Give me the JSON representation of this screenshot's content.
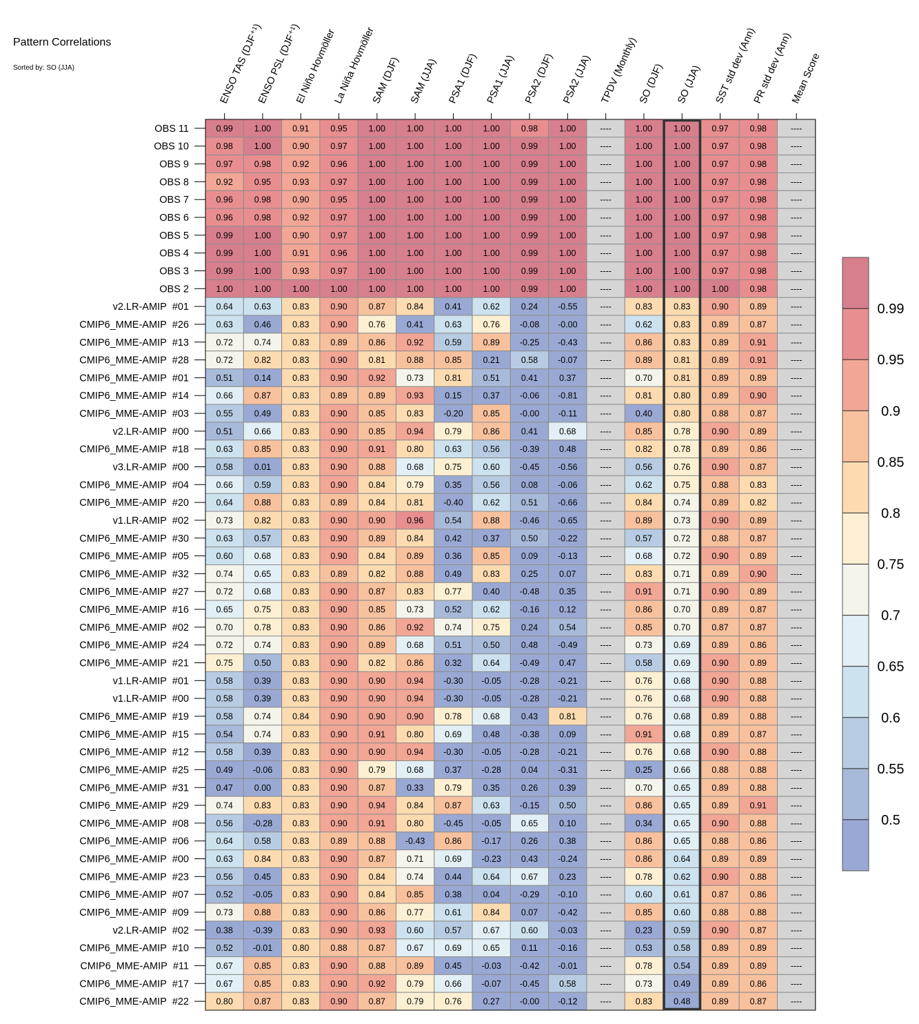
{
  "chart_data": {
    "type": "heatmap",
    "title": "Pattern Correlations",
    "subtitle": "Sorted by: SO (JJA)",
    "sorted_column": "SO (JJA)",
    "missing_text": "----",
    "columns": [
      "ENSO TAS (DJF⁺¹)",
      "ENSO PSL (DJF⁺¹)",
      "El Niño Hovmöller",
      "La Niña Hovmöller",
      "SAM (DJF)",
      "SAM (JJA)",
      "PSA1 (DJF)",
      "PSA1 (JJA)",
      "PSA2 (DJF)",
      "PSA2 (JJA)",
      "TPDV (Monthly)",
      "SO (DJF)",
      "SO (JJA)",
      "SST std dev (Ann)",
      "PR std dev (Ann)",
      "Mean Score"
    ],
    "rows": [
      {
        "label": "OBS 11",
        "values": [
          "0.99",
          "1.00",
          "0.91",
          "0.95",
          "1.00",
          "1.00",
          "1.00",
          "1.00",
          "0.98",
          "1.00",
          null,
          "1.00",
          "1.00",
          "0.97",
          "0.98",
          null
        ]
      },
      {
        "label": "OBS 10",
        "values": [
          "0.98",
          "1.00",
          "0.90",
          "0.97",
          "1.00",
          "1.00",
          "1.00",
          "1.00",
          "0.99",
          "1.00",
          null,
          "1.00",
          "1.00",
          "0.97",
          "0.98",
          null
        ]
      },
      {
        "label": "OBS 9",
        "values": [
          "0.97",
          "0.98",
          "0.92",
          "0.96",
          "1.00",
          "1.00",
          "1.00",
          "1.00",
          "0.99",
          "1.00",
          null,
          "1.00",
          "1.00",
          "0.97",
          "0.98",
          null
        ]
      },
      {
        "label": "OBS 8",
        "values": [
          "0.92",
          "0.95",
          "0.93",
          "0.97",
          "1.00",
          "1.00",
          "1.00",
          "1.00",
          "0.99",
          "1.00",
          null,
          "1.00",
          "1.00",
          "0.97",
          "0.98",
          null
        ]
      },
      {
        "label": "OBS 7",
        "values": [
          "0.96",
          "0.98",
          "0.90",
          "0.95",
          "1.00",
          "1.00",
          "1.00",
          "1.00",
          "0.99",
          "1.00",
          null,
          "1.00",
          "1.00",
          "0.97",
          "0.98",
          null
        ]
      },
      {
        "label": "OBS 6",
        "values": [
          "0.96",
          "0.98",
          "0.92",
          "0.97",
          "1.00",
          "1.00",
          "1.00",
          "1.00",
          "0.99",
          "1.00",
          null,
          "1.00",
          "1.00",
          "0.97",
          "0.98",
          null
        ]
      },
      {
        "label": "OBS 5",
        "values": [
          "0.99",
          "1.00",
          "0.90",
          "0.97",
          "1.00",
          "1.00",
          "1.00",
          "1.00",
          "0.99",
          "1.00",
          null,
          "1.00",
          "1.00",
          "0.97",
          "0.98",
          null
        ]
      },
      {
        "label": "OBS 4",
        "values": [
          "0.99",
          "1.00",
          "0.91",
          "0.96",
          "1.00",
          "1.00",
          "1.00",
          "1.00",
          "0.99",
          "1.00",
          null,
          "1.00",
          "1.00",
          "0.97",
          "0.98",
          null
        ]
      },
      {
        "label": "OBS 3",
        "values": [
          "0.99",
          "1.00",
          "0.93",
          "0.97",
          "1.00",
          "1.00",
          "1.00",
          "1.00",
          "0.99",
          "1.00",
          null,
          "1.00",
          "1.00",
          "0.97",
          "0.98",
          null
        ]
      },
      {
        "label": "OBS 2",
        "values": [
          "1.00",
          "1.00",
          "1.00",
          "1.00",
          "1.00",
          "1.00",
          "1.00",
          "1.00",
          "0.99",
          "1.00",
          null,
          "1.00",
          "1.00",
          "1.00",
          "0.98",
          null
        ]
      },
      {
        "label": "v2.LR-AMIP  #01",
        "values": [
          "0.64",
          "0.63",
          "0.83",
          "0.90",
          "0.87",
          "0.84",
          "0.41",
          "0.62",
          "0.24",
          "-0.55",
          null,
          "0.83",
          "0.83",
          "0.90",
          "0.89",
          null
        ]
      },
      {
        "label": "CMIP6_MME-AMIP  #26",
        "values": [
          "0.63",
          "0.46",
          "0.83",
          "0.90",
          "0.76",
          "0.41",
          "0.63",
          "0.76",
          "-0.08",
          "-0.00",
          null,
          "0.62",
          "0.83",
          "0.89",
          "0.87",
          null
        ]
      },
      {
        "label": "CMIP6_MME-AMIP  #13",
        "values": [
          "0.72",
          "0.74",
          "0.83",
          "0.89",
          "0.86",
          "0.92",
          "0.59",
          "0.89",
          "-0.25",
          "-0.43",
          null,
          "0.86",
          "0.83",
          "0.89",
          "0.91",
          null
        ]
      },
      {
        "label": "CMIP6_MME-AMIP  #28",
        "values": [
          "0.72",
          "0.82",
          "0.83",
          "0.90",
          "0.81",
          "0.88",
          "0.85",
          "0.21",
          "0.58",
          "-0.07",
          null,
          "0.89",
          "0.81",
          "0.89",
          "0.91",
          null
        ]
      },
      {
        "label": "CMIP6_MME-AMIP  #01",
        "values": [
          "0.51",
          "0.14",
          "0.83",
          "0.90",
          "0.92",
          "0.73",
          "0.81",
          "0.51",
          "0.41",
          "0.37",
          null,
          "0.70",
          "0.81",
          "0.89",
          "0.89",
          null
        ]
      },
      {
        "label": "CMIP6_MME-AMIP  #14",
        "values": [
          "0.66",
          "0.87",
          "0.83",
          "0.89",
          "0.89",
          "0.93",
          "0.15",
          "0.37",
          "-0.06",
          "-0.81",
          null,
          "0.81",
          "0.80",
          "0.89",
          "0.90",
          null
        ]
      },
      {
        "label": "CMIP6_MME-AMIP  #03",
        "values": [
          "0.55",
          "0.49",
          "0.83",
          "0.90",
          "0.85",
          "0.83",
          "-0.20",
          "0.85",
          "-0.00",
          "-0.11",
          null,
          "0.40",
          "0.80",
          "0.88",
          "0.87",
          null
        ]
      },
      {
        "label": "v2.LR-AMIP  #00",
        "values": [
          "0.51",
          "0.66",
          "0.83",
          "0.90",
          "0.85",
          "0.94",
          "0.79",
          "0.86",
          "0.41",
          "0.68",
          null,
          "0.85",
          "0.78",
          "0.90",
          "0.89",
          null
        ]
      },
      {
        "label": "CMIP6_MME-AMIP  #18",
        "values": [
          "0.63",
          "0.85",
          "0.83",
          "0.90",
          "0.91",
          "0.80",
          "0.63",
          "0.56",
          "-0.39",
          "0.48",
          null,
          "0.82",
          "0.78",
          "0.89",
          "0.86",
          null
        ]
      },
      {
        "label": "v3.LR-AMIP  #00",
        "values": [
          "0.58",
          "0.01",
          "0.83",
          "0.90",
          "0.88",
          "0.68",
          "0.75",
          "0.60",
          "-0.45",
          "-0.56",
          null,
          "0.56",
          "0.76",
          "0.90",
          "0.87",
          null
        ]
      },
      {
        "label": "CMIP6_MME-AMIP  #04",
        "values": [
          "0.66",
          "0.59",
          "0.83",
          "0.90",
          "0.84",
          "0.79",
          "0.35",
          "0.56",
          "0.08",
          "-0.06",
          null,
          "0.62",
          "0.75",
          "0.88",
          "0.83",
          null
        ]
      },
      {
        "label": "CMIP6_MME-AMIP  #20",
        "values": [
          "0.64",
          "0.88",
          "0.83",
          "0.89",
          "0.84",
          "0.81",
          "-0.40",
          "0.62",
          "0.51",
          "-0.66",
          null,
          "0.84",
          "0.74",
          "0.89",
          "0.82",
          null
        ]
      },
      {
        "label": "v1.LR-AMIP  #02",
        "values": [
          "0.73",
          "0.82",
          "0.83",
          "0.90",
          "0.90",
          "0.96",
          "0.54",
          "0.88",
          "-0.46",
          "-0.65",
          null,
          "0.89",
          "0.73",
          "0.90",
          "0.89",
          null
        ]
      },
      {
        "label": "CMIP6_MME-AMIP  #30",
        "values": [
          "0.63",
          "0.57",
          "0.83",
          "0.90",
          "0.89",
          "0.84",
          "0.42",
          "0.37",
          "0.50",
          "-0.22",
          null,
          "0.57",
          "0.72",
          "0.88",
          "0.87",
          null
        ]
      },
      {
        "label": "CMIP6_MME-AMIP  #05",
        "values": [
          "0.60",
          "0.68",
          "0.83",
          "0.90",
          "0.84",
          "0.89",
          "0.36",
          "0.85",
          "0.09",
          "-0.13",
          null,
          "0.68",
          "0.72",
          "0.90",
          "0.89",
          null
        ]
      },
      {
        "label": "CMIP6_MME-AMIP  #32",
        "values": [
          "0.74",
          "0.65",
          "0.83",
          "0.89",
          "0.82",
          "0.88",
          "0.49",
          "0.83",
          "0.25",
          "0.07",
          null,
          "0.83",
          "0.71",
          "0.89",
          "0.90",
          null
        ]
      },
      {
        "label": "CMIP6_MME-AMIP  #27",
        "values": [
          "0.72",
          "0.68",
          "0.83",
          "0.90",
          "0.87",
          "0.83",
          "0.77",
          "0.40",
          "-0.48",
          "0.35",
          null,
          "0.91",
          "0.71",
          "0.90",
          "0.89",
          null
        ]
      },
      {
        "label": "CMIP6_MME-AMIP  #16",
        "values": [
          "0.65",
          "0.75",
          "0.83",
          "0.90",
          "0.85",
          "0.73",
          "0.52",
          "0.62",
          "-0.16",
          "0.12",
          null,
          "0.86",
          "0.70",
          "0.89",
          "0.87",
          null
        ]
      },
      {
        "label": "CMIP6_MME-AMIP  #02",
        "values": [
          "0.70",
          "0.78",
          "0.83",
          "0.90",
          "0.86",
          "0.92",
          "0.74",
          "0.75",
          "0.24",
          "0.54",
          null,
          "0.85",
          "0.70",
          "0.87",
          "0.87",
          null
        ]
      },
      {
        "label": "CMIP6_MME-AMIP  #24",
        "values": [
          "0.72",
          "0.74",
          "0.83",
          "0.90",
          "0.89",
          "0.68",
          "0.51",
          "0.50",
          "0.48",
          "-0.49",
          null,
          "0.73",
          "0.69",
          "0.89",
          "0.86",
          null
        ]
      },
      {
        "label": "CMIP6_MME-AMIP  #21",
        "values": [
          "0.75",
          "0.50",
          "0.83",
          "0.90",
          "0.82",
          "0.86",
          "0.32",
          "0.64",
          "-0.49",
          "0.47",
          null,
          "0.58",
          "0.69",
          "0.90",
          "0.89",
          null
        ]
      },
      {
        "label": "v1.LR-AMIP  #01",
        "values": [
          "0.58",
          "0.39",
          "0.83",
          "0.90",
          "0.90",
          "0.94",
          "-0.30",
          "-0.05",
          "-0.28",
          "-0.21",
          null,
          "0.76",
          "0.68",
          "0.90",
          "0.88",
          null
        ]
      },
      {
        "label": "v1.LR-AMIP  #00",
        "values": [
          "0.58",
          "0.39",
          "0.83",
          "0.90",
          "0.90",
          "0.94",
          "-0.30",
          "-0.05",
          "-0.28",
          "-0.21",
          null,
          "0.76",
          "0.68",
          "0.90",
          "0.88",
          null
        ]
      },
      {
        "label": "CMIP6_MME-AMIP  #19",
        "values": [
          "0.58",
          "0.74",
          "0.84",
          "0.90",
          "0.90",
          "0.90",
          "0.78",
          "0.68",
          "0.43",
          "0.81",
          null,
          "0.76",
          "0.68",
          "0.89",
          "0.88",
          null
        ]
      },
      {
        "label": "CMIP6_MME-AMIP  #15",
        "values": [
          "0.54",
          "0.74",
          "0.83",
          "0.90",
          "0.91",
          "0.80",
          "0.69",
          "0.48",
          "-0.38",
          "0.09",
          null,
          "0.91",
          "0.68",
          "0.89",
          "0.87",
          null
        ]
      },
      {
        "label": "CMIP6_MME-AMIP  #12",
        "values": [
          "0.58",
          "0.39",
          "0.83",
          "0.90",
          "0.90",
          "0.94",
          "-0.30",
          "-0.05",
          "-0.28",
          "-0.21",
          null,
          "0.76",
          "0.68",
          "0.90",
          "0.88",
          null
        ]
      },
      {
        "label": "CMIP6_MME-AMIP  #25",
        "values": [
          "0.49",
          "-0.06",
          "0.83",
          "0.90",
          "0.79",
          "0.68",
          "0.37",
          "-0.28",
          "0.04",
          "-0.31",
          null,
          "0.25",
          "0.66",
          "0.88",
          "0.88",
          null
        ]
      },
      {
        "label": "CMIP6_MME-AMIP  #31",
        "values": [
          "0.47",
          "0.00",
          "0.83",
          "0.90",
          "0.87",
          "0.33",
          "0.79",
          "0.35",
          "0.26",
          "0.39",
          null,
          "0.70",
          "0.65",
          "0.89",
          "0.88",
          null
        ]
      },
      {
        "label": "CMIP6_MME-AMIP  #29",
        "values": [
          "0.74",
          "0.83",
          "0.83",
          "0.90",
          "0.94",
          "0.84",
          "0.87",
          "0.63",
          "-0.15",
          "0.50",
          null,
          "0.86",
          "0.65",
          "0.89",
          "0.91",
          null
        ]
      },
      {
        "label": "CMIP6_MME-AMIP  #08",
        "values": [
          "0.56",
          "-0.28",
          "0.83",
          "0.90",
          "0.91",
          "0.80",
          "-0.45",
          "-0.05",
          "0.65",
          "0.10",
          null,
          "0.34",
          "0.65",
          "0.90",
          "0.88",
          null
        ]
      },
      {
        "label": "CMIP6_MME-AMIP  #06",
        "values": [
          "0.64",
          "0.58",
          "0.83",
          "0.89",
          "0.88",
          "-0.43",
          "0.86",
          "-0.17",
          "0.26",
          "0.38",
          null,
          "0.86",
          "0.65",
          "0.88",
          "0.86",
          null
        ]
      },
      {
        "label": "CMIP6_MME-AMIP  #00",
        "values": [
          "0.63",
          "0.84",
          "0.83",
          "0.90",
          "0.87",
          "0.71",
          "0.69",
          "-0.23",
          "0.43",
          "-0.24",
          null,
          "0.86",
          "0.64",
          "0.89",
          "0.89",
          null
        ]
      },
      {
        "label": "CMIP6_MME-AMIP  #23",
        "values": [
          "0.56",
          "0.45",
          "0.83",
          "0.90",
          "0.84",
          "0.74",
          "0.44",
          "0.64",
          "0.67",
          "0.23",
          null,
          "0.78",
          "0.62",
          "0.90",
          "0.88",
          null
        ]
      },
      {
        "label": "CMIP6_MME-AMIP  #07",
        "values": [
          "0.52",
          "-0.05",
          "0.83",
          "0.90",
          "0.84",
          "0.85",
          "0.38",
          "0.04",
          "-0.29",
          "-0.10",
          null,
          "0.60",
          "0.61",
          "0.87",
          "0.86",
          null
        ]
      },
      {
        "label": "CMIP6_MME-AMIP  #09",
        "values": [
          "0.73",
          "0.88",
          "0.83",
          "0.90",
          "0.86",
          "0.77",
          "0.61",
          "0.84",
          "0.07",
          "-0.42",
          null,
          "0.85",
          "0.60",
          "0.88",
          "0.88",
          null
        ]
      },
      {
        "label": "v2.LR-AMIP  #02",
        "values": [
          "0.38",
          "-0.39",
          "0.83",
          "0.90",
          "0.93",
          "0.60",
          "0.57",
          "0.67",
          "0.60",
          "-0.03",
          null,
          "0.23",
          "0.59",
          "0.90",
          "0.87",
          null
        ]
      },
      {
        "label": "CMIP6_MME-AMIP  #10",
        "values": [
          "0.52",
          "-0.01",
          "0.80",
          "0.88",
          "0.87",
          "0.67",
          "0.69",
          "0.65",
          "0.11",
          "-0.16",
          null,
          "0.53",
          "0.58",
          "0.89",
          "0.89",
          null
        ]
      },
      {
        "label": "CMIP6_MME-AMIP  #11",
        "values": [
          "0.67",
          "0.85",
          "0.83",
          "0.90",
          "0.88",
          "0.89",
          "0.45",
          "-0.03",
          "-0.42",
          "-0.01",
          null,
          "0.78",
          "0.54",
          "0.89",
          "0.89",
          null
        ]
      },
      {
        "label": "CMIP6_MME-AMIP  #17",
        "values": [
          "0.67",
          "0.85",
          "0.83",
          "0.90",
          "0.92",
          "0.79",
          "0.66",
          "-0.07",
          "-0.45",
          "0.58",
          null,
          "0.73",
          "0.49",
          "0.89",
          "0.86",
          null
        ]
      },
      {
        "label": "CMIP6_MME-AMIP  #22",
        "values": [
          "0.80",
          "0.87",
          "0.83",
          "0.90",
          "0.87",
          "0.79",
          "0.76",
          "0.27",
          "-0.00",
          "-0.12",
          null,
          "0.83",
          "0.48",
          "0.89",
          "0.87",
          null
        ]
      }
    ],
    "colorbar": {
      "ticks": [
        "0.99",
        "0.95",
        "0.9",
        "0.85",
        "0.8",
        "0.75",
        "0.7",
        "0.65",
        "0.6",
        "0.55",
        "0.5"
      ],
      "boundaries": [
        0.45,
        0.5,
        0.55,
        0.6,
        0.65,
        0.7,
        0.75,
        0.8,
        0.85,
        0.9,
        0.95,
        0.99,
        1.0
      ],
      "colors": [
        "#9aa9d3",
        "#a8bada",
        "#b7cce2",
        "#cce2ee",
        "#e2eff4",
        "#f5f4ea",
        "#fdf0d2",
        "#fcdbb1",
        "#f8c19e",
        "#f2a696",
        "#e88e90",
        "#d77f8d"
      ]
    },
    "missing_color": "#d5d5d5",
    "highlight_border_color": "#333333"
  }
}
